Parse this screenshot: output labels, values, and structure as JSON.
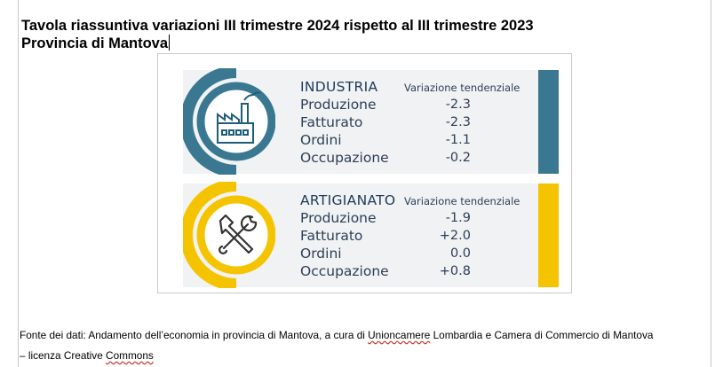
{
  "title": {
    "line1": "Tavola riassuntiva variazioni III trimestre 2024 rispetto al III trimestre 2023",
    "line2": "Provincia di Mantova"
  },
  "industria": {
    "title": "INDUSTRIA",
    "subtitle": "Variazione tendenziale",
    "icon": "factory-icon",
    "color": "#3a7891",
    "rows": [
      {
        "label": "Produzione",
        "value": "-2.3"
      },
      {
        "label": "Fatturato",
        "value": "-2.3"
      },
      {
        "label": "Ordini",
        "value": "-1.1"
      },
      {
        "label": "Occupazione",
        "value": "-0.2"
      }
    ]
  },
  "artigianato": {
    "title": "ARTIGIANATO",
    "subtitle": "Variazione tendenziale",
    "icon": "tools-icon",
    "color": "#f5c400",
    "rows": [
      {
        "label": "Produzione",
        "value": "-1.9"
      },
      {
        "label": "Fatturato",
        "value": "+2.0"
      },
      {
        "label": "Ordini",
        "value": "0.0"
      },
      {
        "label": "Occupazione",
        "value": "+0.8"
      }
    ]
  },
  "footer": {
    "part1": "Fonte dei dati: Andamento dell’economia in provincia di Mantova, a cura di ",
    "part2": "Unioncamere",
    "part3": " Lombardia e Camera di Commercio di Mantova",
    "part4": "– licenza Creative ",
    "part5": "Commons"
  }
}
